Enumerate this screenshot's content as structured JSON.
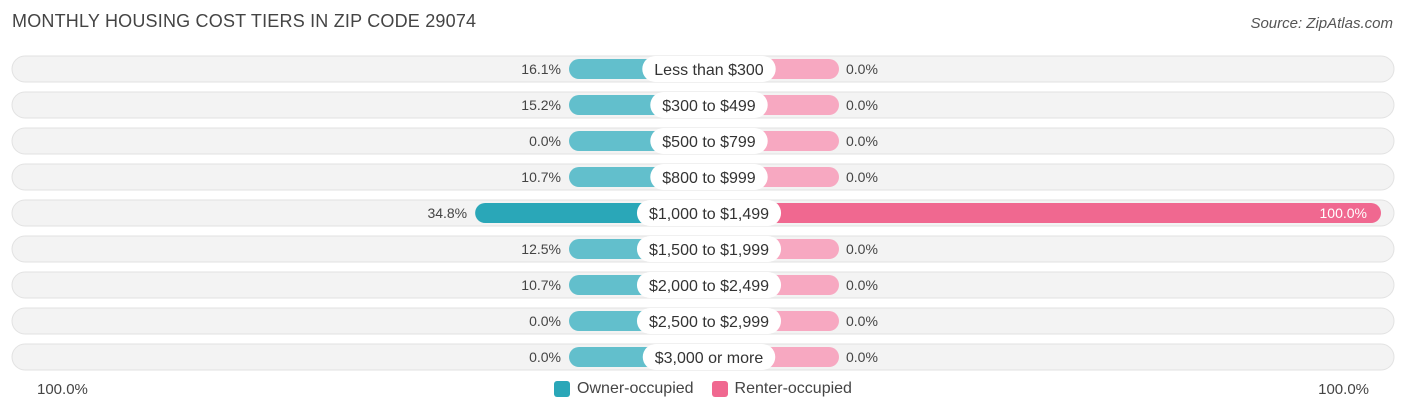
{
  "header": {
    "title": "MONTHLY HOUSING COST TIERS IN ZIP CODE 29074",
    "source": "Source: ZipAtlas.com"
  },
  "colors": {
    "owner": "#62bfcc",
    "owner_strong": "#2aa7b8",
    "renter": "#f7a8c1",
    "renter_strong": "#f06890",
    "track": "#f0f0f0"
  },
  "axis": {
    "left_label": "100.0%",
    "right_label": "100.0%"
  },
  "legend": [
    {
      "label": "Owner-occupied",
      "color": "#2aa7b8"
    },
    {
      "label": "Renter-occupied",
      "color": "#f06890"
    }
  ],
  "chart_data": {
    "type": "bar",
    "orientation": "diverging-horizontal",
    "categories": [
      "Less than $300",
      "$300 to $499",
      "$500 to $799",
      "$800 to $999",
      "$1,000 to $1,499",
      "$1,500 to $1,999",
      "$2,000 to $2,499",
      "$2,500 to $2,999",
      "$3,000 or more"
    ],
    "series": [
      {
        "name": "Owner-occupied",
        "values": [
          16.1,
          15.2,
          0.0,
          10.7,
          34.8,
          12.5,
          10.7,
          0.0,
          0.0
        ],
        "labels": [
          "16.1%",
          "15.2%",
          "0.0%",
          "10.7%",
          "34.8%",
          "12.5%",
          "10.7%",
          "0.0%",
          "0.0%"
        ]
      },
      {
        "name": "Renter-occupied",
        "values": [
          0.0,
          0.0,
          0.0,
          0.0,
          100.0,
          0.0,
          0.0,
          0.0,
          0.0
        ],
        "labels": [
          "0.0%",
          "0.0%",
          "0.0%",
          "0.0%",
          "100.0%",
          "0.0%",
          "0.0%",
          "0.0%",
          "0.0%"
        ]
      }
    ],
    "xlim": [
      0,
      100
    ]
  }
}
